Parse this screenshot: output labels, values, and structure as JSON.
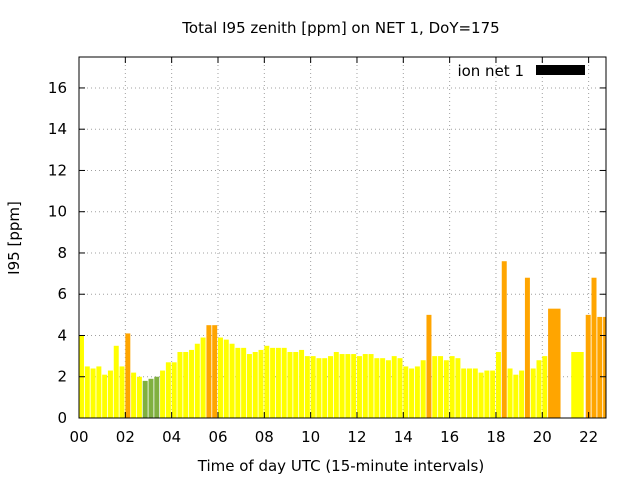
{
  "chart_data": {
    "type": "bar",
    "title": "Total I95 zenith [ppm] on NET 1, DoY=175",
    "xlabel": "Time of day UTC (15-minute intervals)",
    "ylabel": "I95 [ppm]",
    "xlim": [
      0,
      22.75
    ],
    "ylim": [
      0,
      17.5
    ],
    "grid": true,
    "legend_position": "top-right",
    "x_ticks": [
      0,
      2,
      4,
      6,
      8,
      10,
      12,
      14,
      16,
      18,
      20,
      22
    ],
    "x_tick_labels": [
      "00",
      "02",
      "04",
      "06",
      "08",
      "10",
      "12",
      "14",
      "16",
      "18",
      "20",
      "22"
    ],
    "y_ticks": [
      0,
      2,
      4,
      6,
      8,
      10,
      12,
      14,
      16
    ],
    "y_tick_labels": [
      "0",
      "2",
      "4",
      "6",
      "8",
      "10",
      "12",
      "14",
      "16"
    ],
    "colors": {
      "yellow": "#ffff00",
      "orange": "#ffa500",
      "green": "#80b040",
      "legend": "#000000"
    },
    "series": [
      {
        "name": "ion net 1",
        "bars": [
          {
            "x": 0.0,
            "w": 0.25,
            "value": 4.0,
            "color": "yellow"
          },
          {
            "x": 0.25,
            "w": 0.25,
            "value": 2.5,
            "color": "yellow"
          },
          {
            "x": 0.5,
            "w": 0.25,
            "value": 2.4,
            "color": "yellow"
          },
          {
            "x": 0.75,
            "w": 0.25,
            "value": 2.5,
            "color": "yellow"
          },
          {
            "x": 1.0,
            "w": 0.25,
            "value": 2.1,
            "color": "yellow"
          },
          {
            "x": 1.25,
            "w": 0.25,
            "value": 2.3,
            "color": "yellow"
          },
          {
            "x": 1.5,
            "w": 0.25,
            "value": 3.5,
            "color": "yellow"
          },
          {
            "x": 1.75,
            "w": 0.25,
            "value": 2.5,
            "color": "yellow"
          },
          {
            "x": 2.0,
            "w": 0.25,
            "value": 4.1,
            "color": "orange"
          },
          {
            "x": 2.25,
            "w": 0.25,
            "value": 2.2,
            "color": "yellow"
          },
          {
            "x": 2.5,
            "w": 0.25,
            "value": 2.0,
            "color": "yellow"
          },
          {
            "x": 2.75,
            "w": 0.25,
            "value": 1.8,
            "color": "green"
          },
          {
            "x": 3.0,
            "w": 0.25,
            "value": 1.9,
            "color": "green"
          },
          {
            "x": 3.25,
            "w": 0.25,
            "value": 2.0,
            "color": "green"
          },
          {
            "x": 3.5,
            "w": 0.25,
            "value": 2.3,
            "color": "yellow"
          },
          {
            "x": 3.75,
            "w": 0.25,
            "value": 2.7,
            "color": "yellow"
          },
          {
            "x": 4.0,
            "w": 0.25,
            "value": 2.7,
            "color": "yellow"
          },
          {
            "x": 4.25,
            "w": 0.25,
            "value": 3.2,
            "color": "yellow"
          },
          {
            "x": 4.5,
            "w": 0.25,
            "value": 3.2,
            "color": "yellow"
          },
          {
            "x": 4.75,
            "w": 0.25,
            "value": 3.3,
            "color": "yellow"
          },
          {
            "x": 5.0,
            "w": 0.25,
            "value": 3.6,
            "color": "yellow"
          },
          {
            "x": 5.25,
            "w": 0.25,
            "value": 3.9,
            "color": "yellow"
          },
          {
            "x": 5.5,
            "w": 0.25,
            "value": 4.5,
            "color": "orange"
          },
          {
            "x": 5.75,
            "w": 0.25,
            "value": 4.5,
            "color": "orange"
          },
          {
            "x": 6.0,
            "w": 0.25,
            "value": 3.9,
            "color": "yellow"
          },
          {
            "x": 6.25,
            "w": 0.25,
            "value": 3.8,
            "color": "yellow"
          },
          {
            "x": 6.5,
            "w": 0.25,
            "value": 3.6,
            "color": "yellow"
          },
          {
            "x": 6.75,
            "w": 0.25,
            "value": 3.4,
            "color": "yellow"
          },
          {
            "x": 7.0,
            "w": 0.25,
            "value": 3.4,
            "color": "yellow"
          },
          {
            "x": 7.25,
            "w": 0.25,
            "value": 3.1,
            "color": "yellow"
          },
          {
            "x": 7.5,
            "w": 0.25,
            "value": 3.2,
            "color": "yellow"
          },
          {
            "x": 7.75,
            "w": 0.25,
            "value": 3.3,
            "color": "yellow"
          },
          {
            "x": 8.0,
            "w": 0.25,
            "value": 3.5,
            "color": "yellow"
          },
          {
            "x": 8.25,
            "w": 0.25,
            "value": 3.4,
            "color": "yellow"
          },
          {
            "x": 8.5,
            "w": 0.25,
            "value": 3.4,
            "color": "yellow"
          },
          {
            "x": 8.75,
            "w": 0.25,
            "value": 3.4,
            "color": "yellow"
          },
          {
            "x": 9.0,
            "w": 0.25,
            "value": 3.2,
            "color": "yellow"
          },
          {
            "x": 9.25,
            "w": 0.25,
            "value": 3.2,
            "color": "yellow"
          },
          {
            "x": 9.5,
            "w": 0.25,
            "value": 3.3,
            "color": "yellow"
          },
          {
            "x": 9.75,
            "w": 0.25,
            "value": 3.0,
            "color": "yellow"
          },
          {
            "x": 10.0,
            "w": 0.25,
            "value": 3.0,
            "color": "yellow"
          },
          {
            "x": 10.25,
            "w": 0.25,
            "value": 2.9,
            "color": "yellow"
          },
          {
            "x": 10.5,
            "w": 0.25,
            "value": 2.9,
            "color": "yellow"
          },
          {
            "x": 10.75,
            "w": 0.25,
            "value": 3.0,
            "color": "yellow"
          },
          {
            "x": 11.0,
            "w": 0.25,
            "value": 3.2,
            "color": "yellow"
          },
          {
            "x": 11.25,
            "w": 0.25,
            "value": 3.1,
            "color": "yellow"
          },
          {
            "x": 11.5,
            "w": 0.25,
            "value": 3.1,
            "color": "yellow"
          },
          {
            "x": 11.75,
            "w": 0.25,
            "value": 3.1,
            "color": "yellow"
          },
          {
            "x": 12.0,
            "w": 0.25,
            "value": 3.0,
            "color": "yellow"
          },
          {
            "x": 12.25,
            "w": 0.25,
            "value": 3.1,
            "color": "yellow"
          },
          {
            "x": 12.5,
            "w": 0.25,
            "value": 3.1,
            "color": "yellow"
          },
          {
            "x": 12.75,
            "w": 0.25,
            "value": 2.9,
            "color": "yellow"
          },
          {
            "x": 13.0,
            "w": 0.25,
            "value": 2.9,
            "color": "yellow"
          },
          {
            "x": 13.25,
            "w": 0.25,
            "value": 2.8,
            "color": "yellow"
          },
          {
            "x": 13.5,
            "w": 0.25,
            "value": 3.0,
            "color": "yellow"
          },
          {
            "x": 13.75,
            "w": 0.25,
            "value": 2.9,
            "color": "yellow"
          },
          {
            "x": 14.0,
            "w": 0.25,
            "value": 2.5,
            "color": "yellow"
          },
          {
            "x": 14.25,
            "w": 0.25,
            "value": 2.4,
            "color": "yellow"
          },
          {
            "x": 14.5,
            "w": 0.25,
            "value": 2.5,
            "color": "yellow"
          },
          {
            "x": 14.75,
            "w": 0.25,
            "value": 2.8,
            "color": "yellow"
          },
          {
            "x": 15.0,
            "w": 0.25,
            "value": 5.0,
            "color": "orange"
          },
          {
            "x": 15.25,
            "w": 0.25,
            "value": 3.0,
            "color": "yellow"
          },
          {
            "x": 15.5,
            "w": 0.25,
            "value": 3.0,
            "color": "yellow"
          },
          {
            "x": 15.75,
            "w": 0.25,
            "value": 2.8,
            "color": "yellow"
          },
          {
            "x": 16.0,
            "w": 0.25,
            "value": 3.0,
            "color": "yellow"
          },
          {
            "x": 16.25,
            "w": 0.25,
            "value": 2.9,
            "color": "yellow"
          },
          {
            "x": 16.5,
            "w": 0.25,
            "value": 2.4,
            "color": "yellow"
          },
          {
            "x": 16.75,
            "w": 0.25,
            "value": 2.4,
            "color": "yellow"
          },
          {
            "x": 17.0,
            "w": 0.25,
            "value": 2.4,
            "color": "yellow"
          },
          {
            "x": 17.25,
            "w": 0.25,
            "value": 2.2,
            "color": "yellow"
          },
          {
            "x": 17.5,
            "w": 0.25,
            "value": 2.3,
            "color": "yellow"
          },
          {
            "x": 17.75,
            "w": 0.25,
            "value": 2.3,
            "color": "yellow"
          },
          {
            "x": 18.0,
            "w": 0.25,
            "value": 3.2,
            "color": "yellow"
          },
          {
            "x": 18.25,
            "w": 0.25,
            "value": 7.6,
            "color": "orange"
          },
          {
            "x": 18.5,
            "w": 0.25,
            "value": 2.4,
            "color": "yellow"
          },
          {
            "x": 18.75,
            "w": 0.25,
            "value": 2.1,
            "color": "yellow"
          },
          {
            "x": 19.0,
            "w": 0.25,
            "value": 2.3,
            "color": "yellow"
          },
          {
            "x": 19.25,
            "w": 0.25,
            "value": 6.8,
            "color": "orange"
          },
          {
            "x": 19.5,
            "w": 0.25,
            "value": 2.4,
            "color": "yellow"
          },
          {
            "x": 19.75,
            "w": 0.25,
            "value": 2.8,
            "color": "yellow"
          },
          {
            "x": 20.0,
            "w": 0.25,
            "value": 3.0,
            "color": "yellow"
          },
          {
            "x": 20.25,
            "w": 0.625,
            "value": 5.3,
            "color": "orange"
          },
          {
            "x": 21.25,
            "w": 0.625,
            "value": 3.2,
            "color": "yellow"
          },
          {
            "x": 21.875,
            "w": 0.25,
            "value": 5.0,
            "color": "orange"
          },
          {
            "x": 22.125,
            "w": 0.25,
            "value": 6.8,
            "color": "orange"
          },
          {
            "x": 22.375,
            "w": 0.25,
            "value": 4.9,
            "color": "orange"
          },
          {
            "x": 22.625,
            "w": 0.125,
            "value": 4.9,
            "color": "orange"
          }
        ]
      }
    ]
  }
}
